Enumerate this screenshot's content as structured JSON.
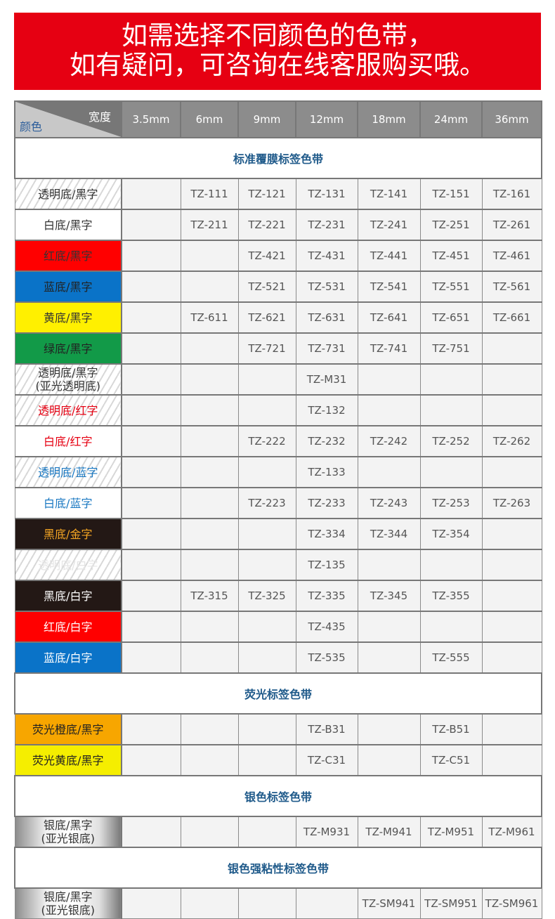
{
  "banner": {
    "line1": "如需选择不同颜色的色带，",
    "line2": "如有疑问，可咨询在线客服购买哦。"
  },
  "header": {
    "corner_width": "宽度",
    "corner_color": "颜色",
    "widths": [
      "3.5mm",
      "6mm",
      "9mm",
      "12mm",
      "18mm",
      "24mm",
      "36mm"
    ]
  },
  "sections": [
    {
      "title": "标准覆膜标签色带",
      "rows": [
        {
          "label": "透明底/黑字",
          "style": "hatch",
          "bg": "",
          "fg": "#333333",
          "cells": [
            "",
            "TZ-111",
            "TZ-121",
            "TZ-131",
            "TZ-141",
            "TZ-151",
            "TZ-161"
          ]
        },
        {
          "label": "白底/黑字",
          "style": "solid",
          "bg": "#ffffff",
          "fg": "#333333",
          "cells": [
            "",
            "TZ-211",
            "TZ-221",
            "TZ-231",
            "TZ-241",
            "TZ-251",
            "TZ-261"
          ]
        },
        {
          "label": "红底/黑字",
          "style": "solid",
          "bg": "#ff0000",
          "fg": "#333333",
          "cells": [
            "",
            "",
            "TZ-421",
            "TZ-431",
            "TZ-441",
            "TZ-451",
            "TZ-461"
          ]
        },
        {
          "label": "蓝底/黑字",
          "style": "solid",
          "bg": "#0a73c8",
          "fg": "#222222",
          "cells": [
            "",
            "",
            "TZ-521",
            "TZ-531",
            "TZ-541",
            "TZ-551",
            "TZ-561"
          ]
        },
        {
          "label": "黄底/黑字",
          "style": "solid",
          "bg": "#fff000",
          "fg": "#333333",
          "cells": [
            "",
            "TZ-611",
            "TZ-621",
            "TZ-631",
            "TZ-641",
            "TZ-651",
            "TZ-661"
          ]
        },
        {
          "label": "绿底/黑字",
          "style": "solid",
          "bg": "#129a48",
          "fg": "#222222",
          "cells": [
            "",
            "",
            "TZ-721",
            "TZ-731",
            "TZ-741",
            "TZ-751",
            ""
          ]
        },
        {
          "label": "透明底/黑字\n(亚光透明底)",
          "style": "hatch",
          "bg": "",
          "fg": "#333333",
          "cells": [
            "",
            "",
            "",
            "TZ-M31",
            "",
            "",
            ""
          ]
        },
        {
          "label": "透明底/红字",
          "style": "hatch",
          "bg": "",
          "fg": "#e60012",
          "cells": [
            "",
            "",
            "",
            "TZ-132",
            "",
            "",
            ""
          ]
        },
        {
          "label": "白底/红字",
          "style": "solid",
          "bg": "#ffffff",
          "fg": "#e60012",
          "cells": [
            "",
            "",
            "TZ-222",
            "TZ-232",
            "TZ-242",
            "TZ-252",
            "TZ-262"
          ]
        },
        {
          "label": "透明底/蓝字",
          "style": "hatch",
          "bg": "",
          "fg": "#1a78c2",
          "cells": [
            "",
            "",
            "",
            "TZ-133",
            "",
            "",
            ""
          ]
        },
        {
          "label": "白底/蓝字",
          "style": "solid",
          "bg": "#ffffff",
          "fg": "#1a78c2",
          "cells": [
            "",
            "",
            "TZ-223",
            "TZ-233",
            "TZ-243",
            "TZ-253",
            "TZ-263"
          ]
        },
        {
          "label": "黑底/金字",
          "style": "solid",
          "bg": "#231815",
          "fg": "#f5a623",
          "cells": [
            "",
            "",
            "",
            "TZ-334",
            "TZ-344",
            "TZ-354",
            ""
          ]
        },
        {
          "label": "透明底/白字",
          "style": "hatch",
          "bg": "",
          "fg": "#e4e4e4",
          "cells": [
            "",
            "",
            "",
            "TZ-135",
            "",
            "",
            ""
          ]
        },
        {
          "label": "黑底/白字",
          "style": "solid",
          "bg": "#231815",
          "fg": "#ffffff",
          "cells": [
            "",
            "TZ-315",
            "TZ-325",
            "TZ-335",
            "TZ-345",
            "TZ-355",
            ""
          ]
        },
        {
          "label": "红底/白字",
          "style": "solid",
          "bg": "#ff0000",
          "fg": "#ffffff",
          "cells": [
            "",
            "",
            "",
            "TZ-435",
            "",
            "",
            ""
          ]
        },
        {
          "label": "蓝底/白字",
          "style": "solid",
          "bg": "#0a73c8",
          "fg": "#ffffff",
          "cells": [
            "",
            "",
            "",
            "TZ-535",
            "",
            "TZ-555",
            ""
          ]
        }
      ]
    },
    {
      "title": "荧光标签色带",
      "rows": [
        {
          "label": "荧光橙底/黑字",
          "style": "solid",
          "bg": "#f7a600",
          "fg": "#222222",
          "cells": [
            "",
            "",
            "",
            "TZ-B31",
            "",
            "TZ-B51",
            ""
          ]
        },
        {
          "label": "荧光黄底/黑字",
          "style": "solid",
          "bg": "#f5ee00",
          "fg": "#222222",
          "cells": [
            "",
            "",
            "",
            "TZ-C31",
            "",
            "TZ-C51",
            ""
          ]
        }
      ]
    },
    {
      "title": "银色标签色带",
      "rows": [
        {
          "label": "银底/黑字\n(亚光银底)",
          "style": "silver",
          "bg": "",
          "fg": "#333333",
          "cells": [
            "",
            "",
            "",
            "TZ-M931",
            "TZ-M941",
            "TZ-M951",
            "TZ-M961"
          ]
        }
      ]
    },
    {
      "title": "银色强粘性标签色带",
      "rows": [
        {
          "label": "银底/黑字\n(亚光银底)",
          "style": "silver",
          "bg": "",
          "fg": "#333333",
          "cells": [
            "",
            "",
            "",
            "",
            "TZ-SM941",
            "TZ-SM951",
            "TZ-SM961"
          ]
        }
      ]
    }
  ]
}
